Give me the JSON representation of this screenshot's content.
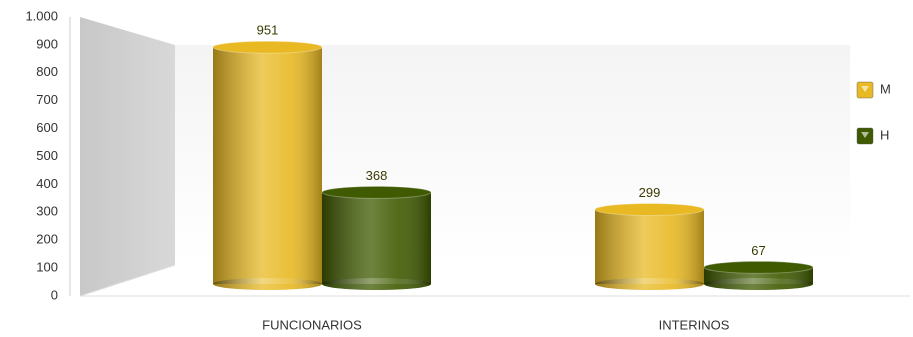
{
  "chart_data": {
    "type": "bar",
    "categories": [
      "FUNCIONARIOS",
      "INTERINOS"
    ],
    "series": [
      {
        "name": "M",
        "color": "#e8b923",
        "values": [
          951,
          299
        ]
      },
      {
        "name": "H",
        "color": "#3f5a00",
        "values": [
          368,
          67
        ]
      }
    ],
    "ylim": [
      0,
      1000
    ],
    "yticks": [
      0,
      100,
      200,
      300,
      400,
      500,
      600,
      700,
      800,
      900,
      {
        "value": 1000,
        "label": "1.000"
      }
    ],
    "legend": "right"
  }
}
